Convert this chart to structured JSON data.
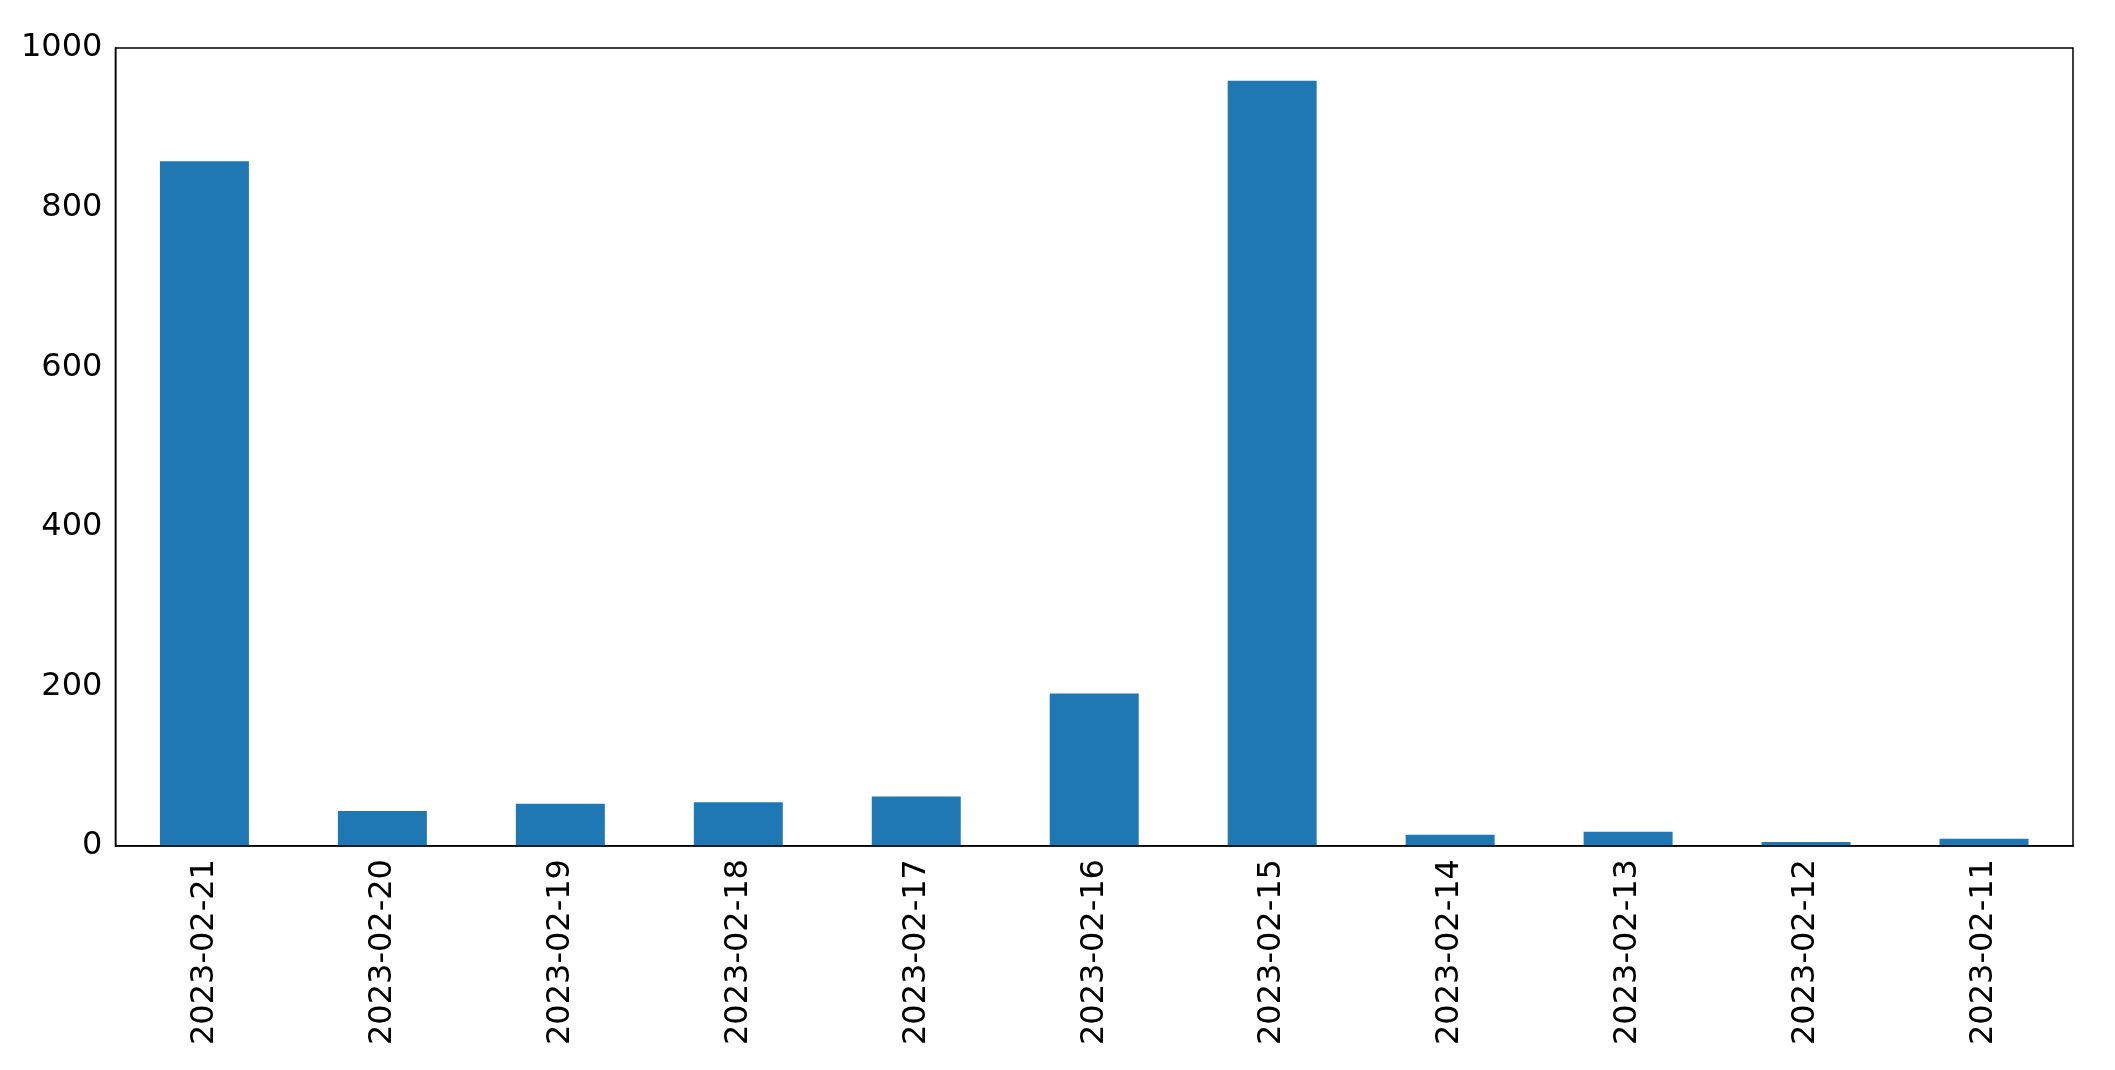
{
  "chart_data": {
    "type": "bar",
    "categories": [
      "2023-02-21",
      "2023-02-20",
      "2023-02-19",
      "2023-02-18",
      "2023-02-17",
      "2023-02-16",
      "2023-02-15",
      "2023-02-14",
      "2023-02-13",
      "2023-02-12",
      "2023-02-11"
    ],
    "values": [
      858,
      44,
      53,
      55,
      62,
      191,
      959,
      14,
      18,
      5,
      9
    ],
    "color": "#1f77b4",
    "ylim": [
      0,
      1000
    ],
    "yticks": [
      0,
      200,
      400,
      600,
      800,
      1000
    ],
    "grid": false,
    "legend": false
  }
}
